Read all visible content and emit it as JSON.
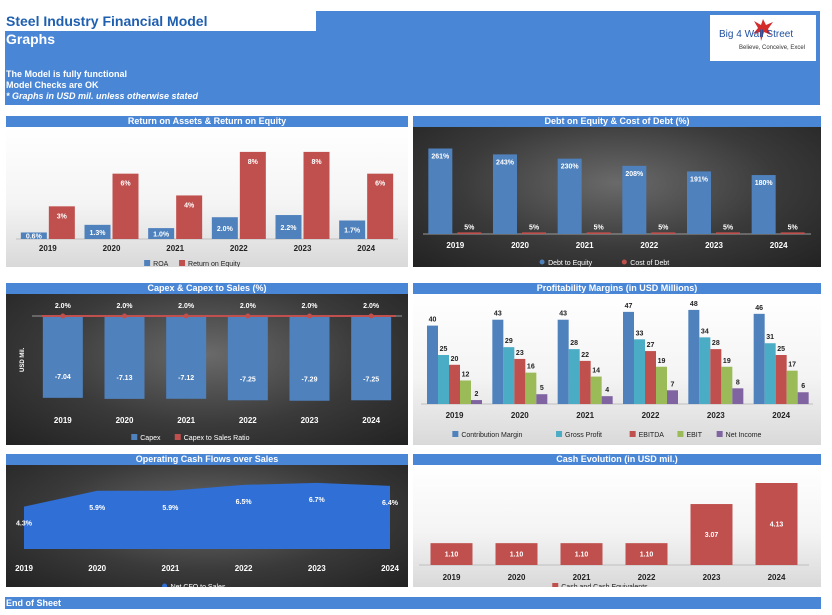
{
  "header": {
    "title": "Steel Industry Financial Model",
    "subtitle": "Graphs",
    "note1": "The Model is fully functional",
    "note2": "Model Checks are OK",
    "note3": "* Graphs in USD mil. unless otherwise stated"
  },
  "logo": {
    "text": "Big 4 Wall Street",
    "tagline": "Believe, Conceive, Excel"
  },
  "footer": {
    "label": "End of Sheet"
  },
  "colors": {
    "header_blue": "#4a86d6",
    "bar_blue": "#4f81bd",
    "bar_red": "#c0504d"
  },
  "chart_data": [
    {
      "id": "roa",
      "type": "bar",
      "title": "Return on Assets & Return on Equity",
      "categories": [
        "2019",
        "2020",
        "2021",
        "2022",
        "2023",
        "2024"
      ],
      "series": [
        {
          "name": "ROA",
          "values": [
            0.6,
            1.3,
            1.0,
            2.0,
            2.2,
            1.7
          ],
          "labels": [
            "0.6%",
            "1.3%",
            "1.0%",
            "2.0%",
            "2.2%",
            "1.7%"
          ],
          "color": "#4f81bd"
        },
        {
          "name": "Return on Equity",
          "values": [
            3,
            6,
            4,
            8,
            8,
            6
          ],
          "labels": [
            "3%",
            "6%",
            "4%",
            "8%",
            "8%",
            "6%"
          ],
          "color": "#c0504d"
        }
      ],
      "ylim": [
        0,
        9
      ],
      "legend": "bottom"
    },
    {
      "id": "debt",
      "type": "bar",
      "title": "Debt on Equity & Cost of Debt (%)",
      "categories": [
        "2019",
        "2020",
        "2021",
        "2022",
        "2023",
        "2024"
      ],
      "series": [
        {
          "name": "Debt to Equity",
          "values": [
            261,
            243,
            230,
            208,
            191,
            180
          ],
          "labels": [
            "261%",
            "243%",
            "230%",
            "208%",
            "191%",
            "180%"
          ],
          "color": "#4f81bd"
        },
        {
          "name": "Cost of Debt",
          "values": [
            5,
            5,
            5,
            5,
            5,
            5
          ],
          "labels": [
            "5%",
            "5%",
            "5%",
            "5%",
            "5%",
            "5%"
          ],
          "color": "#c0504d"
        }
      ],
      "ylim": [
        0,
        290
      ],
      "legend": "bottom"
    },
    {
      "id": "capex",
      "type": "bar",
      "title": "Capex & Capex to Sales (%)",
      "ylabel": "USD Mil.",
      "categories": [
        "2019",
        "2020",
        "2021",
        "2022",
        "2023",
        "2024"
      ],
      "series": [
        {
          "name": "Capex",
          "values": [
            -7.04,
            -7.13,
            -7.12,
            -7.25,
            -7.29,
            -7.25
          ],
          "labels": [
            "-7.04",
            "-7.13",
            "-7.12",
            "-7.25",
            "-7.29",
            "-7.25"
          ],
          "color": "#4f81bd"
        },
        {
          "name": "Capex to Sales Ratio",
          "values": [
            2.0,
            2.0,
            2.0,
            2.0,
            2.0,
            2.0
          ],
          "labels": [
            "2.0%",
            "2.0%",
            "2.0%",
            "2.0%",
            "2.0%",
            "2.0%"
          ],
          "color": "#c0504d"
        }
      ],
      "ylim": [
        -8,
        0
      ],
      "legend": "bottom"
    },
    {
      "id": "margins",
      "type": "bar",
      "title": "Profitability Margins (in USD Millions)",
      "categories": [
        "2019",
        "2020",
        "2021",
        "2022",
        "2023",
        "2024"
      ],
      "series": [
        {
          "name": "Contribution Margin",
          "values": [
            40,
            43,
            43,
            47,
            48,
            46
          ],
          "color": "#4f81bd"
        },
        {
          "name": "Gross Profit",
          "values": [
            25,
            29,
            28,
            33,
            34,
            31
          ],
          "color": "#4bacc6"
        },
        {
          "name": "EBITDA",
          "values": [
            20,
            23,
            22,
            27,
            28,
            25
          ],
          "color": "#c0504d"
        },
        {
          "name": "EBIT",
          "values": [
            12,
            16,
            14,
            19,
            19,
            17
          ],
          "color": "#9bbb59"
        },
        {
          "name": "Net Income",
          "values": [
            2,
            5,
            4,
            7,
            8,
            6
          ],
          "color": "#8064a2"
        }
      ],
      "ylim": [
        0,
        55
      ],
      "legend": "bottom"
    },
    {
      "id": "cfo",
      "type": "area",
      "title": "Operating Cash Flows over Sales",
      "categories": [
        "2019",
        "2020",
        "2021",
        "2022",
        "2023",
        "2024"
      ],
      "series": [
        {
          "name": "Net CFO to Sales",
          "values": [
            4.3,
            5.9,
            5.9,
            6.5,
            6.7,
            6.4
          ],
          "labels": [
            "4.3%",
            "5.9%",
            "5.9%",
            "6.5%",
            "6.7%",
            "6.4%"
          ],
          "color": "#2f6fd6"
        }
      ],
      "ylim": [
        0,
        7.5
      ],
      "legend": "bottom"
    },
    {
      "id": "cash",
      "type": "bar",
      "title": "Cash Evolution (in USD mil.)",
      "categories": [
        "2019",
        "2020",
        "2021",
        "2022",
        "2023",
        "2024"
      ],
      "series": [
        {
          "name": "Cash and Cash Equivalents",
          "values": [
            1.1,
            1.1,
            1.1,
            1.1,
            3.07,
            4.13
          ],
          "labels": [
            "1.10",
            "1.10",
            "1.10",
            "1.10",
            "3.07",
            "4.13"
          ],
          "color": "#c0504d"
        }
      ],
      "ylim": [
        0,
        4.6
      ],
      "legend": "bottom"
    }
  ]
}
